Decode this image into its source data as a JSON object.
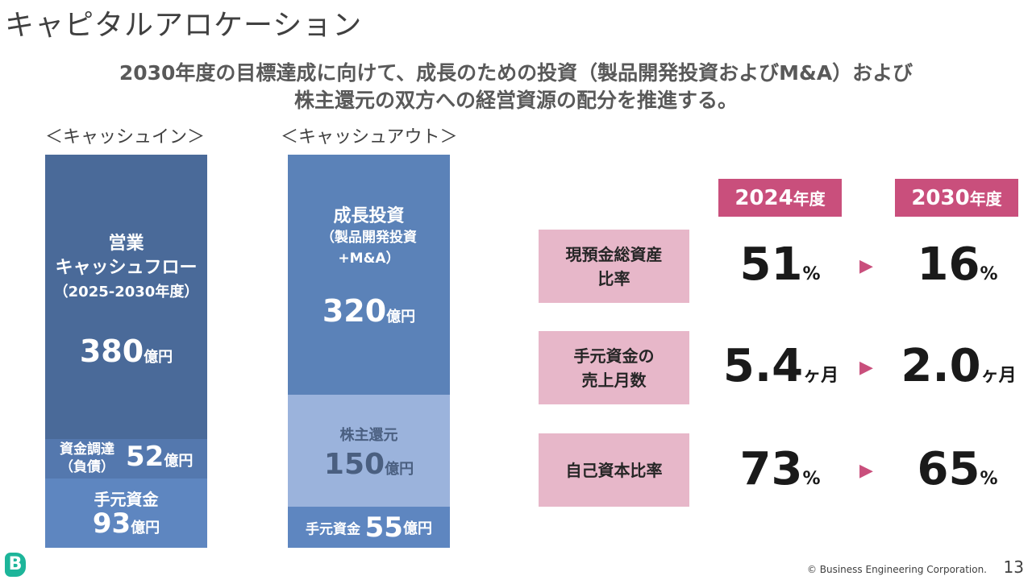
{
  "title": "キャピタルアロケーション",
  "subtitle": {
    "line1": "2030年度の目標達成に向けて、成長のための投資（製品開発投資およびM&A）および",
    "line2": "株主還元の双方への経営資源の配分を推進する。"
  },
  "cash_in": {
    "label": "＜キャッシュイン＞",
    "operating": {
      "line1": "営業",
      "line2": "キャッシュフロー",
      "line3": "（2025-2030年度）",
      "value": "380",
      "unit": "億円"
    },
    "financing": {
      "line1": "資金調達",
      "line2": "（負債）",
      "value": "52",
      "unit": "億円"
    },
    "on_hand": {
      "label": "手元資金",
      "value": "93",
      "unit": "億円"
    }
  },
  "cash_out": {
    "label": "＜キャッシュアウト＞",
    "growth": {
      "line1": "成長投資",
      "line2": "（製品開発投資",
      "line3": "+M&A）",
      "value": "320",
      "unit": "億円"
    },
    "shareholder": {
      "label": "株主還元",
      "value": "150",
      "unit": "億円"
    },
    "on_hand": {
      "label": "手元資金",
      "value": "55",
      "unit": "億円"
    }
  },
  "years": {
    "from": {
      "num": "2024",
      "unit": "年度"
    },
    "to": {
      "num": "2030",
      "unit": "年度"
    }
  },
  "metrics": [
    {
      "line1": "現預金総資産",
      "line2": "比率",
      "from": "51",
      "from_unit": "%",
      "to": "16",
      "to_unit": "%"
    },
    {
      "line1": "手元資金の",
      "line2": "売上月数",
      "from": "5.4",
      "from_unit": "ヶ月",
      "to": "2.0",
      "to_unit": "ヶ月"
    },
    {
      "line1": "自己資本比率",
      "line2": "",
      "from": "73",
      "from_unit": "%",
      "to": "65",
      "to_unit": "%"
    }
  ],
  "arrow_glyph": "▶",
  "footer": "© Business Engineering Corporation.",
  "page_number": "13",
  "logo_letter": "B",
  "colors": {
    "dark_blue": "#4a6a99",
    "blue": "#5e86c0",
    "light_blue": "#9bb3dc",
    "pink": "#c94f7c",
    "pink_light": "#e7b7c9",
    "logo": "#1db59a"
  }
}
